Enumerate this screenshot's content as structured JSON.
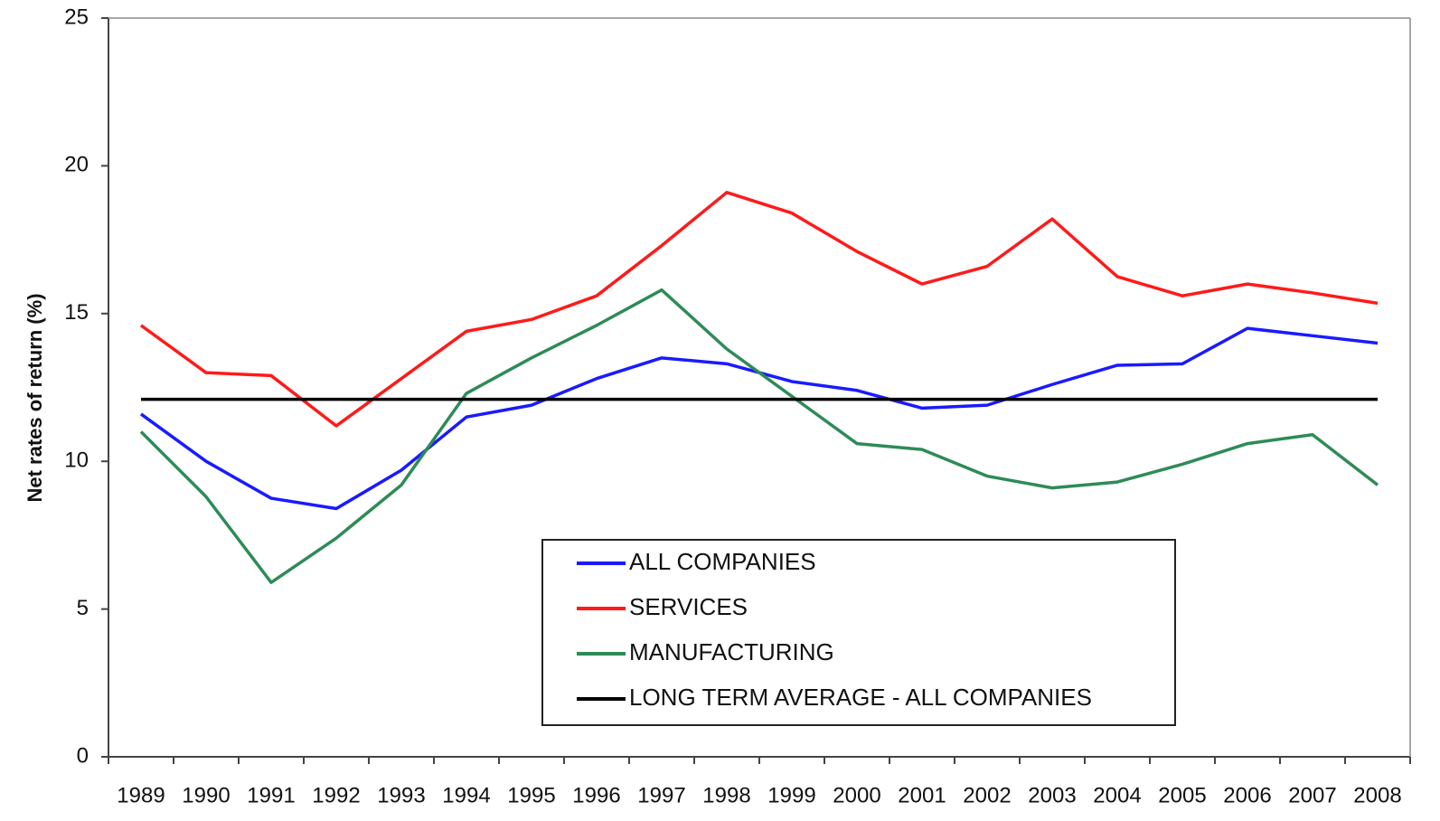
{
  "chart_data": {
    "type": "line",
    "y_label": "Net rates of return (%)",
    "categories": [
      "1989",
      "1990",
      "1991",
      "1992",
      "1993",
      "1994",
      "1995",
      "1996",
      "1997",
      "1998",
      "1999",
      "2000",
      "2001",
      "2002",
      "2003",
      "2004",
      "2005",
      "2006",
      "2007",
      "2008"
    ],
    "series": [
      {
        "name": "ALL COMPANIES",
        "color": "#1a1aff",
        "values": [
          11.6,
          10.0,
          8.75,
          8.4,
          9.7,
          11.5,
          11.9,
          12.8,
          13.5,
          13.3,
          12.7,
          12.4,
          11.8,
          11.9,
          12.6,
          13.25,
          13.3,
          14.5,
          14.25,
          14.0
        ]
      },
      {
        "name": "SERVICES",
        "color": "#ff1a1a",
        "values": [
          14.6,
          13.0,
          12.9,
          11.2,
          12.8,
          14.4,
          14.8,
          15.6,
          17.3,
          19.1,
          18.4,
          17.1,
          16.0,
          16.6,
          18.2,
          16.25,
          15.6,
          16.0,
          15.7,
          15.35
        ]
      },
      {
        "name": "MANUFACTURING",
        "color": "#2e8b57",
        "values": [
          11.0,
          8.8,
          5.9,
          7.4,
          9.2,
          12.3,
          13.5,
          14.6,
          15.8,
          13.8,
          12.2,
          10.6,
          10.4,
          9.5,
          9.1,
          9.3,
          9.9,
          10.6,
          10.9,
          9.2
        ]
      },
      {
        "name": "LONG TERM AVERAGE - ALL COMPANIES",
        "color": "#000000",
        "values": [
          12.1,
          12.1,
          12.1,
          12.1,
          12.1,
          12.1,
          12.1,
          12.1,
          12.1,
          12.1,
          12.1,
          12.1,
          12.1,
          12.1,
          12.1,
          12.1,
          12.1,
          12.1,
          12.1,
          12.1
        ]
      }
    ],
    "ylim": [
      0,
      25
    ],
    "yticks": [
      0,
      5,
      10,
      15,
      20,
      25
    ],
    "grid": false,
    "legend": "bottom-center"
  }
}
